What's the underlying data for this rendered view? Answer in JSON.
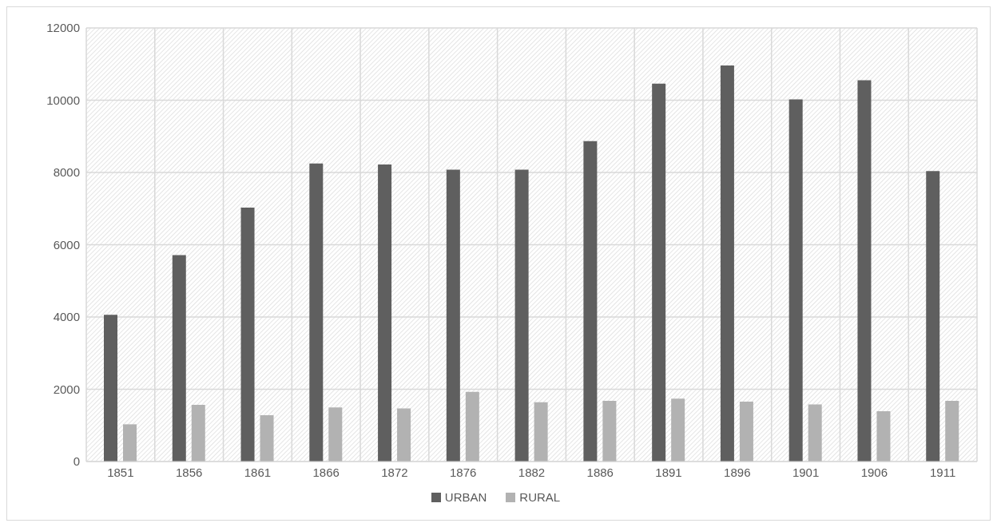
{
  "chart_data": {
    "type": "bar",
    "categories": [
      "1851",
      "1856",
      "1861",
      "1866",
      "1872",
      "1876",
      "1882",
      "1886",
      "1891",
      "1896",
      "1901",
      "1906",
      "1911"
    ],
    "series": [
      {
        "name": "URBAN",
        "color": "#5f5f5f",
        "values": [
          4060,
          5710,
          7030,
          8250,
          8220,
          8080,
          8080,
          8870,
          10460,
          10960,
          10020,
          10550,
          8040
        ]
      },
      {
        "name": "RURAL",
        "color": "#b2b2b2",
        "values": [
          1030,
          1570,
          1280,
          1500,
          1470,
          1930,
          1640,
          1680,
          1740,
          1660,
          1580,
          1390,
          1680
        ]
      }
    ],
    "ylim": [
      0,
      12000
    ],
    "yticks": [
      0,
      2000,
      4000,
      6000,
      8000,
      10000,
      12000
    ],
    "grid": true,
    "legend": "bottom"
  }
}
